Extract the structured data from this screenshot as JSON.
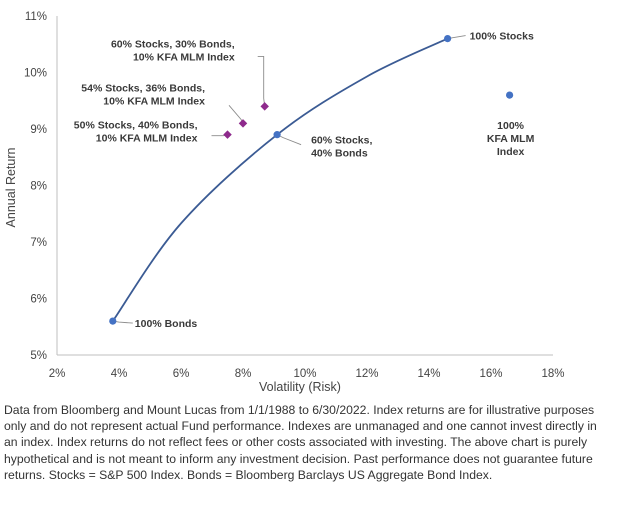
{
  "chart_data": {
    "type": "scatter",
    "xlabel": "Volatility (Risk)",
    "ylabel": "Annual Return",
    "xlim": [
      2,
      18
    ],
    "ylim": [
      5,
      11
    ],
    "x_ticks": [
      "2%",
      "4%",
      "6%",
      "8%",
      "10%",
      "12%",
      "14%",
      "16%",
      "18%"
    ],
    "y_ticks": [
      "5%",
      "6%",
      "7%",
      "8%",
      "9%",
      "10%",
      "11%"
    ],
    "grid": false,
    "frontier_line": [
      {
        "x": 3.8,
        "y": 5.6
      },
      {
        "x": 6.0,
        "y": 7.33
      },
      {
        "x": 9.1,
        "y": 8.9
      },
      {
        "x": 12.0,
        "y": 9.93
      },
      {
        "x": 14.6,
        "y": 10.6
      }
    ],
    "points": [
      {
        "label_lines": [
          "100% Bonds"
        ],
        "x": 3.8,
        "y": 5.6,
        "marker": "circle",
        "color": "#4472c4"
      },
      {
        "label_lines": [
          "60% Stocks,",
          "40% Bonds"
        ],
        "x": 9.1,
        "y": 8.9,
        "marker": "circle",
        "color": "#4472c4"
      },
      {
        "label_lines": [
          "100% Stocks"
        ],
        "x": 14.6,
        "y": 10.6,
        "marker": "circle",
        "color": "#4472c4"
      },
      {
        "label_lines": [
          "100%",
          "KFA MLM",
          "Index"
        ],
        "x": 16.6,
        "y": 9.6,
        "marker": "circle",
        "color": "#4472c4"
      },
      {
        "label_lines": [
          "50% Stocks, 40% Bonds,",
          "10% KFA MLM Index"
        ],
        "x": 7.5,
        "y": 8.9,
        "marker": "diamond",
        "color": "#8e2a8c"
      },
      {
        "label_lines": [
          "54% Stocks, 36% Bonds,",
          "10% KFA MLM Index"
        ],
        "x": 8.0,
        "y": 9.1,
        "marker": "diamond",
        "color": "#8e2a8c"
      },
      {
        "label_lines": [
          "60% Stocks, 30% Bonds,",
          "10% KFA MLM Index"
        ],
        "x": 8.7,
        "y": 9.4,
        "marker": "diamond",
        "color": "#8e2a8c"
      }
    ],
    "colors": {
      "line": "#3b5b94",
      "axis": "#bfbfbf",
      "leader": "#8c8c8c"
    }
  },
  "footnote": "Data from Bloomberg and Mount Lucas from 1/1/1988 to 6/30/2022. Index returns are for illustrative purposes only and do not represent actual Fund performance. Indexes are unmanaged and one cannot invest directly in an index. Index returns do not reflect fees or other costs associated with investing. The above chart is purely hypothetical and is not meant to inform any investment decision. Past performance does not guarantee future returns. Stocks = S&P 500 Index. Bonds = Bloomberg Barclays US Aggregate Bond Index."
}
